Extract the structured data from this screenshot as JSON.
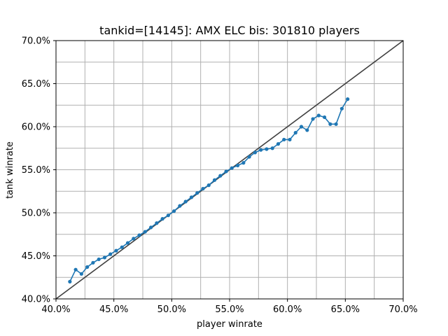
{
  "chart_data": {
    "type": "line",
    "title": "tankid=[14145]: AMX ELC bis: 301810 players",
    "xlabel": "player winrate",
    "ylabel": "tank winrate",
    "xlim": [
      0.4,
      0.7
    ],
    "ylim": [
      0.4,
      0.7
    ],
    "xticks": [
      0.4,
      0.45,
      0.5,
      0.55,
      0.6,
      0.65,
      0.7
    ],
    "yticks": [
      0.4,
      0.45,
      0.5,
      0.55,
      0.6,
      0.65,
      0.7
    ],
    "xtick_labels": [
      "40.0%",
      "45.0%",
      "50.0%",
      "55.0%",
      "60.0%",
      "65.0%",
      "70.0%"
    ],
    "ytick_labels": [
      "40.0%",
      "45.0%",
      "50.0%",
      "55.0%",
      "60.0%",
      "65.0%",
      "70.0%"
    ],
    "grid": true,
    "reference_line": {
      "x": [
        0.4,
        0.7
      ],
      "y": [
        0.4,
        0.7
      ],
      "color": "#404040"
    },
    "series": [
      {
        "color": "#1f77b4",
        "x": [
          0.412,
          0.417,
          0.422,
          0.427,
          0.432,
          0.437,
          0.442,
          0.447,
          0.452,
          0.457,
          0.462,
          0.467,
          0.472,
          0.477,
          0.482,
          0.487,
          0.492,
          0.497,
          0.502,
          0.507,
          0.512,
          0.517,
          0.522,
          0.527,
          0.532,
          0.537,
          0.542,
          0.547,
          0.552,
          0.557,
          0.562,
          0.567,
          0.572,
          0.577,
          0.582,
          0.587,
          0.592,
          0.597,
          0.602,
          0.607,
          0.612,
          0.617,
          0.622,
          0.627,
          0.632,
          0.637,
          0.642,
          0.647,
          0.652
        ],
        "y": [
          0.42,
          0.434,
          0.429,
          0.437,
          0.442,
          0.446,
          0.448,
          0.452,
          0.456,
          0.46,
          0.465,
          0.47,
          0.474,
          0.478,
          0.483,
          0.488,
          0.493,
          0.497,
          0.502,
          0.508,
          0.513,
          0.518,
          0.523,
          0.528,
          0.532,
          0.538,
          0.543,
          0.548,
          0.552,
          0.555,
          0.558,
          0.565,
          0.57,
          0.573,
          0.574,
          0.575,
          0.58,
          0.585,
          0.585,
          0.593,
          0.6,
          0.596,
          0.609,
          0.613,
          0.611,
          0.603,
          0.603,
          0.621,
          0.632
        ]
      }
    ]
  }
}
